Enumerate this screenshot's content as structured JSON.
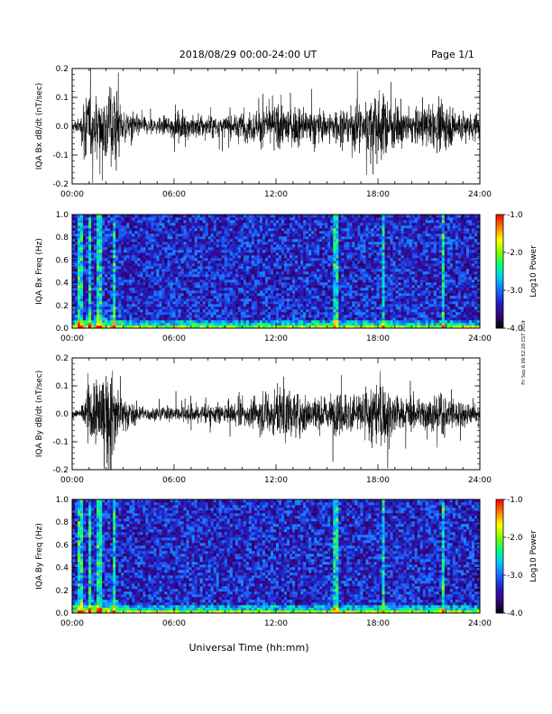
{
  "header": {
    "date_range": "2018/08/29  00:00-24:00 UT",
    "page": "Page 1/1"
  },
  "xlabel": "Universal Time (hh:mm)",
  "side_note": "Fri Sep 6 09:52:28 CST 2019",
  "colorbar": {
    "label": "Log10 Power",
    "ticks": [
      "-1.0",
      "-2.0",
      "-3.0",
      "-4.0"
    ],
    "range": [
      -4.0,
      -1.0
    ],
    "palette": [
      "#000000",
      "#3a007a",
      "#2020c0",
      "#1e64ff",
      "#00c8ff",
      "#00ff80",
      "#80ff00",
      "#ffff00",
      "#ff8000",
      "#ff0000"
    ]
  },
  "chart_data": [
    {
      "type": "line",
      "title": "",
      "ylabel": "IQA Bx dB/dt (nT/sec)",
      "xlabel": "",
      "xlim": [
        "00:00",
        "24:00"
      ],
      "ylim": [
        -0.2,
        0.2
      ],
      "x_ticks": [
        "00:00",
        "06:00",
        "12:00",
        "18:00",
        "24:00"
      ],
      "y_ticks": [
        "-0.2",
        "-0.1",
        "0.0",
        "0.1",
        "0.2"
      ],
      "series": [
        {
          "hours": [
            0,
            0.5,
            0.75,
            1.0,
            1.25,
            1.5,
            2.0,
            2.5,
            3.0,
            4.0,
            5.0,
            6.0,
            7.0,
            8.0,
            9.0,
            10.0,
            11.0,
            12.0,
            13.0,
            14.0,
            15.0,
            16.0,
            17.0,
            18.0,
            19.0,
            20.0,
            21.0,
            22.0,
            23.0,
            24.0
          ],
          "envelope": [
            0.03,
            0.04,
            0.2,
            0.2,
            0.12,
            0.2,
            0.2,
            0.2,
            0.1,
            0.05,
            0.04,
            0.06,
            0.07,
            0.06,
            0.05,
            0.07,
            0.09,
            0.11,
            0.1,
            0.09,
            0.08,
            0.1,
            0.12,
            0.18,
            0.12,
            0.09,
            0.1,
            0.12,
            0.08,
            0.07
          ]
        }
      ]
    },
    {
      "type": "heatmap",
      "title": "",
      "ylabel": "IQA Bx Freq (Hz)",
      "xlabel": "",
      "xlim": [
        "00:00",
        "24:00"
      ],
      "ylim": [
        0.0,
        1.0
      ],
      "x_ticks": [
        "00:00",
        "06:00",
        "12:00",
        "18:00",
        "24:00"
      ],
      "y_ticks": [
        "0.0",
        "0.2",
        "0.4",
        "0.6",
        "0.8",
        "1.0"
      ],
      "color_scale": "Log10 Power",
      "color_range": [
        -4.0,
        -1.0
      ],
      "background_log_power": -3.3,
      "low_freq_band_hours": [
        0,
        24
      ],
      "vertical_bursts_hours": [
        0.5,
        1.0,
        1.6,
        2.5,
        15.5,
        18.3,
        21.8
      ]
    },
    {
      "type": "line",
      "title": "",
      "ylabel": "IQA By dB/dt (nT/sec)",
      "xlabel": "",
      "xlim": [
        "00:00",
        "24:00"
      ],
      "ylim": [
        -0.2,
        0.2
      ],
      "x_ticks": [
        "00:00",
        "06:00",
        "12:00",
        "18:00",
        "24:00"
      ],
      "y_ticks": [
        "-0.2",
        "-0.1",
        "0.0",
        "0.1",
        "0.2"
      ],
      "series": [
        {
          "hours": [
            0,
            0.5,
            0.75,
            1.0,
            1.25,
            1.5,
            2.0,
            2.5,
            3.0,
            4.0,
            5.0,
            6.0,
            7.0,
            8.0,
            9.0,
            10.0,
            11.0,
            12.0,
            13.0,
            14.0,
            15.0,
            16.0,
            17.0,
            18.0,
            19.0,
            20.0,
            21.0,
            22.0,
            23.0,
            24.0
          ],
          "envelope": [
            0.02,
            0.03,
            0.08,
            0.2,
            0.15,
            0.2,
            0.2,
            0.2,
            0.09,
            0.04,
            0.03,
            0.04,
            0.05,
            0.05,
            0.05,
            0.06,
            0.09,
            0.14,
            0.12,
            0.1,
            0.09,
            0.11,
            0.13,
            0.18,
            0.11,
            0.08,
            0.09,
            0.1,
            0.07,
            0.06
          ]
        }
      ]
    },
    {
      "type": "heatmap",
      "title": "",
      "ylabel": "IQA By Freq (Hz)",
      "xlabel": "Universal Time (hh:mm)",
      "xlim": [
        "00:00",
        "24:00"
      ],
      "ylim": [
        0.0,
        1.0
      ],
      "x_ticks": [
        "00:00",
        "06:00",
        "12:00",
        "18:00",
        "24:00"
      ],
      "y_ticks": [
        "0.0",
        "0.2",
        "0.4",
        "0.6",
        "0.8",
        "1.0"
      ],
      "color_scale": "Log10 Power",
      "color_range": [
        -4.0,
        -1.0
      ],
      "background_log_power": -3.3,
      "low_freq_band_hours": [
        0,
        24
      ],
      "vertical_bursts_hours": [
        0.5,
        1.0,
        1.6,
        2.5,
        15.5,
        18.3,
        21.8
      ]
    }
  ]
}
